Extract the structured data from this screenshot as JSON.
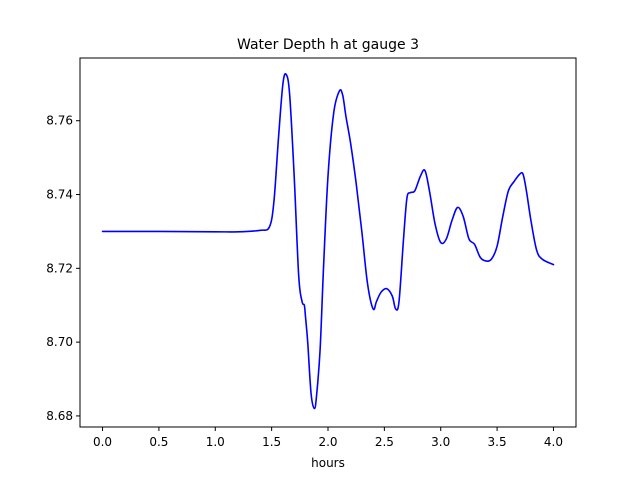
{
  "chart_data": {
    "type": "line",
    "title": "Water Depth h at gauge 3",
    "xlabel": "hours",
    "ylabel": "",
    "xlim": [
      -0.2,
      4.2
    ],
    "ylim": [
      8.677,
      8.777
    ],
    "grid": false,
    "legend": "none",
    "xticks": [
      0.0,
      0.5,
      1.0,
      1.5,
      2.0,
      2.5,
      3.0,
      3.5,
      4.0
    ],
    "xtick_labels": [
      "0.0",
      "0.5",
      "1.0",
      "1.5",
      "2.0",
      "2.5",
      "3.0",
      "3.5",
      "4.0"
    ],
    "yticks": [
      8.68,
      8.7,
      8.72,
      8.74,
      8.76
    ],
    "ytick_labels": [
      "8.68",
      "8.70",
      "8.72",
      "8.74",
      "8.76"
    ],
    "series": [
      {
        "color": "#0000ff",
        "x": [
          0.0,
          0.5,
          1.0,
          1.2,
          1.4,
          1.48,
          1.52,
          1.56,
          1.6,
          1.63,
          1.66,
          1.7,
          1.74,
          1.77,
          1.79,
          1.8,
          1.82,
          1.85,
          1.88,
          1.9,
          1.93,
          1.96,
          2.0,
          2.05,
          2.1,
          2.13,
          2.16,
          2.2,
          2.25,
          2.3,
          2.35,
          2.4,
          2.43,
          2.47,
          2.52,
          2.57,
          2.6,
          2.63,
          2.67,
          2.7,
          2.73,
          2.77,
          2.82,
          2.86,
          2.9,
          2.95,
          3.0,
          3.05,
          3.1,
          3.15,
          3.2,
          3.25,
          3.3,
          3.35,
          3.4,
          3.45,
          3.5,
          3.55,
          3.6,
          3.65,
          3.7,
          3.73,
          3.76,
          3.8,
          3.85,
          3.9,
          4.0
        ],
        "y": [
          8.73,
          8.73,
          8.7299,
          8.7299,
          8.7303,
          8.7312,
          8.738,
          8.755,
          8.77,
          8.7725,
          8.767,
          8.745,
          8.718,
          8.711,
          8.71,
          8.707,
          8.7,
          8.686,
          8.682,
          8.686,
          8.698,
          8.72,
          8.745,
          8.762,
          8.768,
          8.767,
          8.761,
          8.754,
          8.743,
          8.73,
          8.716,
          8.709,
          8.711,
          8.7135,
          8.7145,
          8.7125,
          8.709,
          8.711,
          8.728,
          8.739,
          8.7405,
          8.741,
          8.745,
          8.7465,
          8.741,
          8.732,
          8.727,
          8.728,
          8.733,
          8.7365,
          8.734,
          8.728,
          8.7265,
          8.723,
          8.722,
          8.7225,
          8.726,
          8.734,
          8.741,
          8.7435,
          8.7455,
          8.7455,
          8.741,
          8.733,
          8.725,
          8.7225,
          8.721
        ]
      }
    ]
  }
}
